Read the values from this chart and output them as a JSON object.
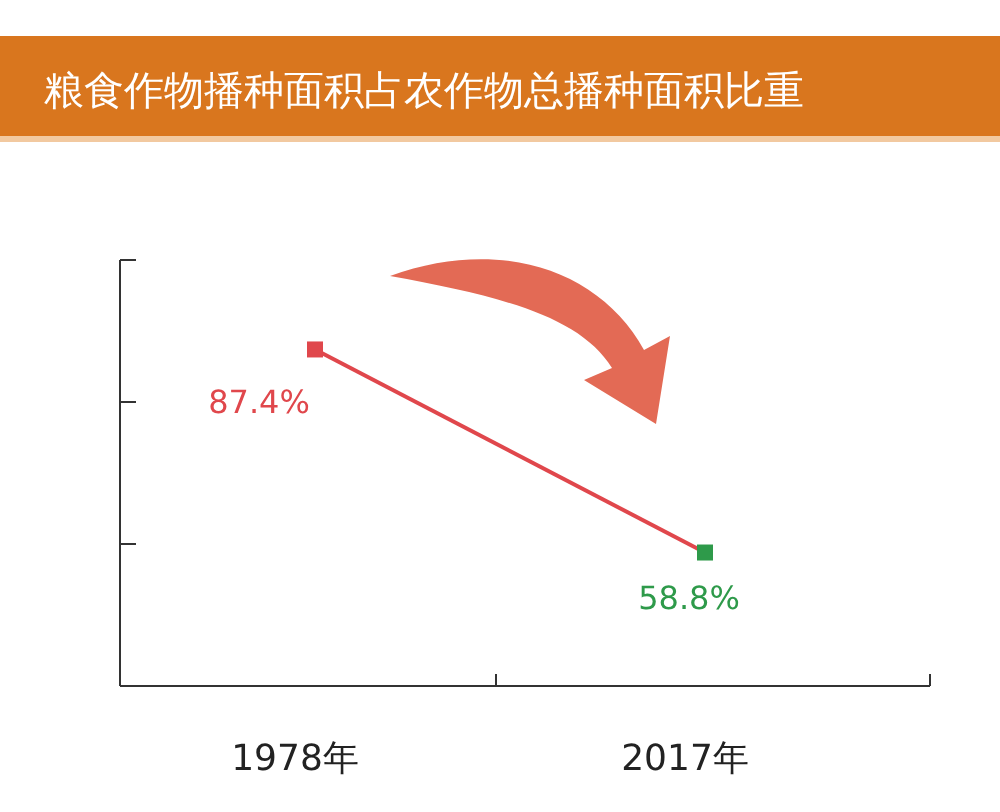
{
  "chart_data": {
    "type": "line",
    "title": "粮食作物播种面积占农作物总播种面积比重",
    "categories": [
      "1978年",
      "2017年"
    ],
    "values": [
      87.4,
      58.8
    ],
    "value_labels": [
      "87.4%",
      "58.8%"
    ],
    "color": "#e0474c",
    "colors": [
      "#e0474c",
      "#2e9a4a"
    ],
    "marker": "square",
    "ylim": [
      40,
      100
    ],
    "yticks": [
      {
        "value": 40,
        "label": null
      },
      {
        "value": 60,
        "label": null
      },
      {
        "value": 80,
        "label": null
      },
      {
        "value": 100,
        "label": null
      }
    ]
  }
}
